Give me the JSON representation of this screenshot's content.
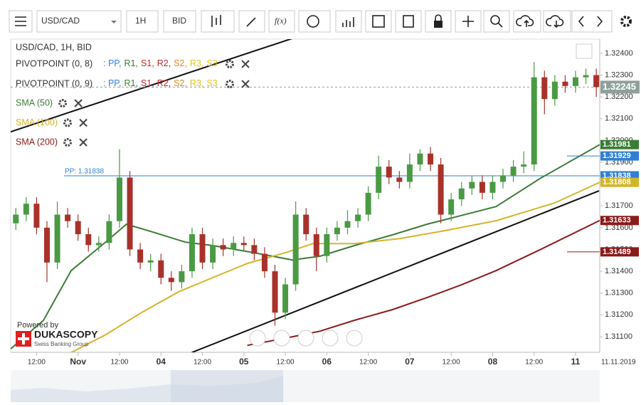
{
  "toolbar": {
    "symbol": "USD/CAD",
    "period": "1H",
    "side": "BID",
    "fx": "f(x)"
  },
  "chart_data": {
    "type": "candlestick",
    "title": "USD/CAD, 1H, BID",
    "up_color": "#4a9a44",
    "down_color": "#a8322a",
    "x": [
      6,
      9,
      12,
      15,
      18,
      21,
      24,
      27,
      30,
      33,
      36,
      39,
      42,
      45,
      48,
      51,
      54,
      57,
      60,
      63,
      66,
      69,
      72,
      75,
      78,
      81,
      84,
      87,
      90,
      93,
      96,
      99,
      102,
      105,
      108,
      111,
      114,
      117,
      120,
      123,
      126,
      129,
      132,
      135,
      138,
      141,
      144,
      147,
      150,
      153,
      156,
      159,
      162,
      165,
      168,
      171,
      174
    ],
    "open": [
      1.3162,
      1.3166,
      1.3171,
      1.316,
      1.3144,
      1.3166,
      1.3163,
      1.3157,
      1.3152,
      1.3153,
      1.3163,
      1.3183,
      1.315,
      1.3144,
      1.3145,
      1.3137,
      1.3135,
      1.314,
      1.3157,
      1.3144,
      1.3152,
      1.315,
      1.3153,
      1.3152,
      1.3148,
      1.314,
      1.3121,
      1.3134,
      1.3166,
      1.3157,
      1.3147,
      1.3157,
      1.316,
      1.3163,
      1.3166,
      1.3176,
      1.3188,
      1.3183,
      1.3181,
      1.3189,
      1.3194,
      1.3189,
      1.3166,
      1.3173,
      1.3178,
      1.3181,
      1.3176,
      1.3181,
      1.3184,
      1.3188,
      1.3189,
      1.3229,
      1.3219,
      1.3227,
      1.3225,
      1.3229,
      1.323
    ],
    "high": [
      1.3169,
      1.3174,
      1.3174,
      1.3163,
      1.3172,
      1.3169,
      1.3166,
      1.316,
      1.3156,
      1.3166,
      1.3196,
      1.3186,
      1.3153,
      1.3148,
      1.3148,
      1.314,
      1.3143,
      1.316,
      1.316,
      1.3155,
      1.3155,
      1.3156,
      1.3156,
      1.3155,
      1.3151,
      1.3143,
      1.3137,
      1.3172,
      1.3169,
      1.316,
      1.316,
      1.3163,
      1.3168,
      1.3169,
      1.3179,
      1.3193,
      1.3191,
      1.3186,
      1.3194,
      1.3196,
      1.3197,
      1.3192,
      1.3176,
      1.3181,
      1.3184,
      1.3184,
      1.3184,
      1.3187,
      1.3191,
      1.3195,
      1.3236,
      1.3232,
      1.323,
      1.323,
      1.3232,
      1.3233,
      1.3233
    ],
    "low": [
      1.3159,
      1.3163,
      1.3157,
      1.3135,
      1.3141,
      1.316,
      1.3154,
      1.3149,
      1.3149,
      1.315,
      1.316,
      1.3147,
      1.3141,
      1.314,
      1.3134,
      1.3131,
      1.3132,
      1.3137,
      1.3141,
      1.3141,
      1.3147,
      1.3147,
      1.3149,
      1.3145,
      1.3137,
      1.3115,
      1.3118,
      1.3131,
      1.3154,
      1.314,
      1.3144,
      1.3154,
      1.3157,
      1.316,
      1.3163,
      1.3173,
      1.318,
      1.3178,
      1.3178,
      1.3186,
      1.3186,
      1.3162,
      1.3163,
      1.317,
      1.3175,
      1.3173,
      1.3173,
      1.3178,
      1.3181,
      1.3185,
      1.3186,
      1.3212,
      1.3216,
      1.3222,
      1.3222,
      1.3226,
      1.322
    ],
    "close": [
      1.3166,
      1.3171,
      1.316,
      1.3144,
      1.3166,
      1.3163,
      1.3157,
      1.3152,
      1.3153,
      1.3163,
      1.3183,
      1.315,
      1.3144,
      1.3145,
      1.3137,
      1.3135,
      1.314,
      1.3157,
      1.3144,
      1.3152,
      1.315,
      1.3153,
      1.3152,
      1.3148,
      1.314,
      1.3121,
      1.3134,
      1.3166,
      1.3157,
      1.3147,
      1.3157,
      1.316,
      1.3163,
      1.3166,
      1.3176,
      1.3188,
      1.3183,
      1.3181,
      1.3189,
      1.3194,
      1.3189,
      1.3166,
      1.3173,
      1.3178,
      1.3181,
      1.3176,
      1.3181,
      1.3184,
      1.3188,
      1.3189,
      1.3229,
      1.3219,
      1.3227,
      1.3225,
      1.3229,
      1.323,
      1.32245
    ],
    "series": [
      {
        "name": "SMA (50)",
        "color": "#3a7d35",
        "x": [
          4.5,
          14,
          22,
          32,
          38,
          45,
          55,
          63,
          75,
          86,
          94,
          104,
          115,
          125,
          133,
          145,
          158,
          175
        ],
        "values": [
          1.31044,
          1.31175,
          1.31403,
          1.31534,
          1.31616,
          1.31583,
          1.31534,
          1.31518,
          1.31485,
          1.31452,
          1.31469,
          1.31518,
          1.31567,
          1.31616,
          1.31648,
          1.31697,
          1.31828,
          1.31981
        ]
      },
      {
        "name": "SMA (100)",
        "color": "#d4b52a",
        "x": [
          22,
          32,
          42,
          53,
          63,
          73,
          84,
          92,
          104,
          117,
          129,
          145,
          162,
          175
        ],
        "values": [
          1.31027,
          1.31109,
          1.31207,
          1.31305,
          1.31371,
          1.31436,
          1.31485,
          1.31527,
          1.31527,
          1.3155,
          1.31583,
          1.31632,
          1.31714,
          1.31808
        ]
      },
      {
        "name": "SMA (200)",
        "color": "#8b1a1a",
        "x": [
          73,
          84,
          94,
          104,
          115,
          125,
          135,
          145,
          158,
          175
        ],
        "values": [
          1.3106,
          1.31093,
          1.31125,
          1.31175,
          1.31224,
          1.31279,
          1.31338,
          1.31403,
          1.31501,
          1.31633
        ]
      }
    ],
    "trendlines": [
      {
        "color": "#111",
        "x": [
          56.9,
          174.8
        ],
        "values": [
          1.31027,
          1.31769
        ]
      },
      {
        "color": "#111",
        "x": [
          4.5,
          89.8
        ],
        "values": [
          1.3204,
          1.32488
        ]
      }
    ],
    "pivot_indicators": [
      "PIVOTPOINT (0, 8)",
      "PIVOTPOINT (0, 9)"
    ],
    "pivot_keys": [
      ": PP,",
      "R1,",
      "S1,",
      "R2,",
      "S2,",
      "R3,",
      "S3"
    ],
    "pivot_key_colors": [
      "#2f7fd6",
      "#3a7d35",
      "#c0282a",
      "#c0282a",
      "#e08a1e",
      "#e6c21a",
      "#e6c21a"
    ],
    "pp_label": "PP: 1.31838",
    "badges": [
      {
        "value": 1.32245,
        "color": "#8fa09a",
        "line": "dashed"
      },
      {
        "value": 1.31981,
        "color": "#3a7d35",
        "line": "none"
      },
      {
        "value": 1.31929,
        "color": "#2f7fd6",
        "line": "short"
      },
      {
        "value": 1.31838,
        "color": "#2f7fd6",
        "line": "pp"
      },
      {
        "value": 1.31808,
        "color": "#d4b52a",
        "line": "none"
      },
      {
        "value": 1.31633,
        "color": "#8b1a1a",
        "line": "none"
      },
      {
        "value": 1.31489,
        "color": "#8b1a1a",
        "line": "short"
      }
    ],
    "xlim": [
      4.5,
      175
    ],
    "xticks": [
      {
        "value": 12,
        "label": "12:00"
      },
      {
        "value": 24,
        "label": "Nov"
      },
      {
        "value": 36,
        "label": "12:00"
      },
      {
        "value": 48,
        "label": "04"
      },
      {
        "value": 60,
        "label": "12:00"
      },
      {
        "value": 72,
        "label": "05"
      },
      {
        "value": 84,
        "label": "12:00"
      },
      {
        "value": 96,
        "label": "06"
      },
      {
        "value": 108,
        "label": "12:00"
      },
      {
        "value": 120,
        "label": "07"
      },
      {
        "value": 132,
        "label": "12:00"
      },
      {
        "value": 144,
        "label": "08"
      },
      {
        "value": 156,
        "label": "12:00"
      },
      {
        "value": 168,
        "label": "11"
      }
    ],
    "date_label": "11.11.2019",
    "ylim": [
      1.31028,
      1.32465
    ],
    "yticks": [
      {
        "value": 1.311,
        "label": "1.31100"
      },
      {
        "value": 1.312,
        "label": "1.31200"
      },
      {
        "value": 1.313,
        "label": "1.31300"
      },
      {
        "value": 1.314,
        "label": "1.31400"
      },
      {
        "value": 1.315,
        "label": "1.31500"
      },
      {
        "value": 1.316,
        "label": "1.31600"
      },
      {
        "value": 1.317,
        "label": "1.31700"
      },
      {
        "value": 1.318,
        "label": "1.31800"
      },
      {
        "value": 1.319,
        "label": "1.31900"
      },
      {
        "value": 1.32,
        "label": "1.32000"
      },
      {
        "value": 1.321,
        "label": "1.32100"
      },
      {
        "value": 1.322,
        "label": "1.32200"
      },
      {
        "value": 1.323,
        "label": "1.32300"
      },
      {
        "value": 1.324,
        "label": "1.32400"
      }
    ],
    "branding": {
      "powered": "Powered by",
      "name": "DUKASCOPY",
      "tagline": "Swiss Banking Group"
    }
  }
}
